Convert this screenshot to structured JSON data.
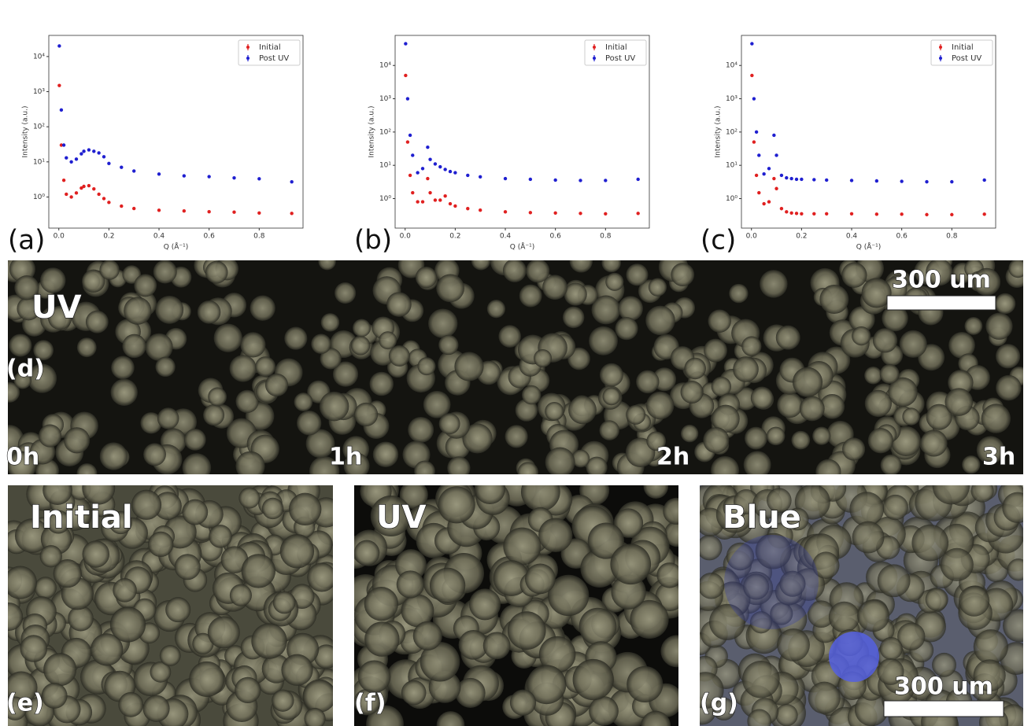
{
  "chart_data": [
    {
      "type": "scatter",
      "panel": "(a)",
      "x_label": "Q (Å⁻¹)",
      "y_label": "Intensity (a.u.)",
      "log_y": true,
      "legend": "upper right",
      "x": [
        0.002,
        0.01,
        0.02,
        0.03,
        0.05,
        0.07,
        0.09,
        0.1,
        0.12,
        0.14,
        0.16,
        0.18,
        0.2,
        0.25,
        0.3,
        0.4,
        0.5,
        0.6,
        0.7,
        0.8,
        0.93
      ],
      "series": [
        {
          "name": "Initial",
          "color": "#e02020",
          "values": [
            1500,
            30,
            3,
            1.2,
            1.0,
            1.3,
            1.8,
            2.0,
            2.1,
            1.7,
            1.2,
            0.9,
            0.7,
            0.55,
            0.47,
            0.42,
            0.4,
            0.38,
            0.37,
            0.35,
            0.34
          ]
        },
        {
          "name": "Post UV",
          "color": "#1f1fd0",
          "values": [
            20000,
            300,
            30,
            13,
            10,
            12,
            17,
            20,
            22,
            20,
            18,
            14,
            9,
            7,
            5.5,
            4.5,
            4,
            3.8,
            3.5,
            3.3,
            2.7
          ]
        }
      ],
      "xlim": [
        -0.04,
        0.975
      ],
      "xticks": [
        {
          "value": 0,
          "label": "0.0"
        },
        0.2,
        0.4,
        0.6,
        0.8
      ],
      "ylim": [
        0.13,
        40000
      ],
      "yticks": [
        {
          "value": 1,
          "label": "10⁰"
        },
        {
          "value": 10,
          "label": "10¹"
        },
        {
          "value": 100,
          "label": "10²"
        },
        {
          "value": 1000,
          "label": "10³"
        },
        {
          "value": 10000,
          "label": "10⁴"
        }
      ]
    },
    {
      "type": "scatter",
      "panel": "(b)",
      "x_label": "Q (Å⁻¹)",
      "y_label": "Intensity (a.u.)",
      "log_y": true,
      "legend": "upper right",
      "x": [
        0.002,
        0.01,
        0.02,
        0.03,
        0.05,
        0.07,
        0.09,
        0.1,
        0.12,
        0.14,
        0.16,
        0.18,
        0.2,
        0.25,
        0.3,
        0.4,
        0.5,
        0.6,
        0.7,
        0.8,
        0.93
      ],
      "series": [
        {
          "name": "Initial",
          "color": "#e02020",
          "values": [
            5000,
            50,
            5,
            1.5,
            0.8,
            0.8,
            4,
            1.5,
            0.9,
            0.9,
            1.2,
            0.7,
            0.6,
            0.5,
            0.45,
            0.4,
            0.38,
            0.37,
            0.36,
            0.35,
            0.36
          ]
        },
        {
          "name": "Post UV",
          "color": "#1f1fd0",
          "values": [
            45000,
            1000,
            80,
            20,
            6,
            8,
            35,
            15,
            11,
            9,
            7.5,
            6.5,
            6,
            5,
            4.5,
            4,
            3.8,
            3.6,
            3.5,
            3.5,
            3.8
          ]
        }
      ],
      "xlim": [
        -0.04,
        0.975
      ],
      "xticks": [
        {
          "value": 0,
          "label": "0.0"
        },
        0.2,
        0.4,
        0.6,
        0.8
      ],
      "ylim": [
        0.13,
        80000
      ],
      "yticks": [
        {
          "value": 1,
          "label": "10⁰"
        },
        {
          "value": 10,
          "label": "10¹"
        },
        {
          "value": 100,
          "label": "10²"
        },
        {
          "value": 1000,
          "label": "10³"
        },
        {
          "value": 10000,
          "label": "10⁴"
        }
      ]
    },
    {
      "type": "scatter",
      "panel": "(c)",
      "x_label": "Q (Å⁻¹)",
      "y_label": "Intensity (a.u.)",
      "log_y": true,
      "legend": "upper right",
      "x": [
        0.002,
        0.01,
        0.02,
        0.03,
        0.05,
        0.07,
        0.09,
        0.1,
        0.12,
        0.14,
        0.16,
        0.18,
        0.2,
        0.25,
        0.3,
        0.4,
        0.5,
        0.6,
        0.7,
        0.8,
        0.93
      ],
      "series": [
        {
          "name": "Initial",
          "color": "#e02020",
          "values": [
            5000,
            50,
            5,
            1.5,
            0.7,
            0.8,
            4,
            2,
            0.5,
            0.4,
            0.37,
            0.36,
            0.35,
            0.35,
            0.35,
            0.35,
            0.34,
            0.34,
            0.33,
            0.33,
            0.34
          ]
        },
        {
          "name": "Post UV",
          "color": "#1f1fd0",
          "values": [
            45000,
            1000,
            100,
            20,
            5.5,
            8,
            80,
            20,
            5,
            4.2,
            4,
            3.8,
            3.8,
            3.7,
            3.6,
            3.5,
            3.4,
            3.3,
            3.2,
            3.2,
            3.6
          ]
        }
      ],
      "xlim": [
        -0.04,
        0.975
      ],
      "xticks": [
        {
          "value": 0,
          "label": "0.0"
        },
        0.2,
        0.4,
        0.6,
        0.8
      ],
      "ylim": [
        0.13,
        80000
      ],
      "yticks": [
        {
          "value": 1,
          "label": "10⁰"
        },
        {
          "value": 10,
          "label": "10¹"
        },
        {
          "value": 100,
          "label": "10²"
        },
        {
          "value": 1000,
          "label": "10³"
        },
        {
          "value": 10000,
          "label": "10⁴"
        }
      ]
    }
  ],
  "images": {
    "d": {
      "label": "(d)",
      "treatment": "UV",
      "scale_bar": "300 um",
      "times": [
        "0h",
        "1h",
        "2h",
        "3h"
      ]
    },
    "e": {
      "label": "(e)",
      "title": "Initial"
    },
    "f": {
      "label": "(f)",
      "title": "UV"
    },
    "g": {
      "label": "(g)",
      "title": "Blue",
      "scale_bar": "300 um"
    }
  }
}
